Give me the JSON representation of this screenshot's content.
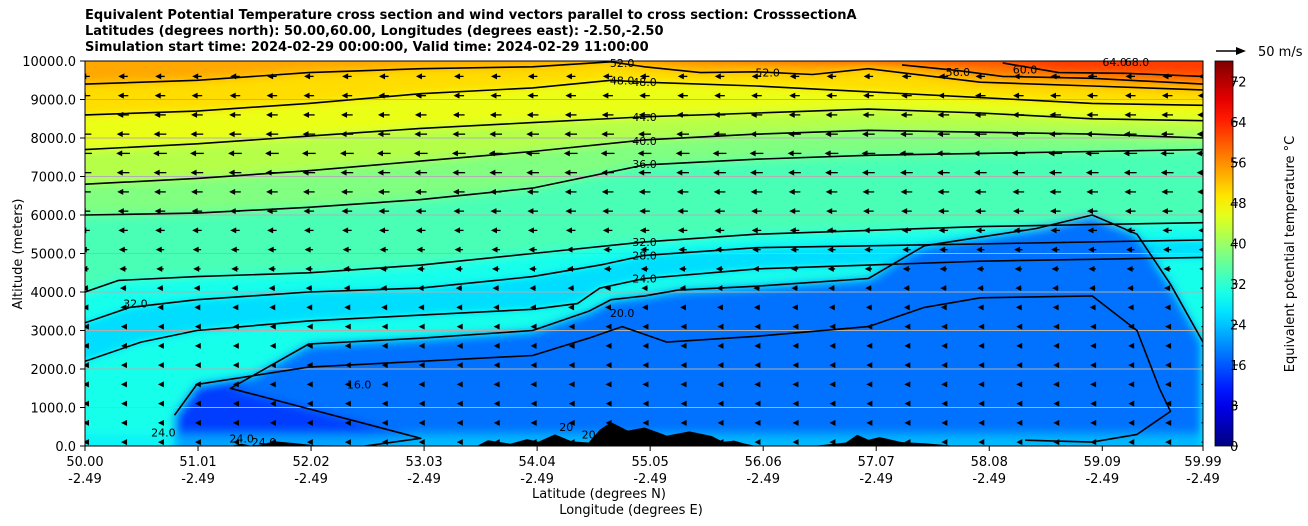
{
  "chart_data": {
    "type": "heatmap",
    "title_lines": [
      "Equivalent Potential Temperature cross section and wind vectors parallel to cross section: CrosssectionA",
      "Latitudes (degrees north): 50.00,60.00, Longitudes (degrees east): -2.50,-2.50",
      "Simulation start time: 2024-02-29 00:00:00, Valid time: 2024-02-29 11:00:00"
    ],
    "xlabel": "Latitude (degrees N)",
    "xlabel2": "Longitude (degrees E)",
    "ylabel": "Altitude (meters)",
    "x_ticks_lat": [
      "50.00",
      "51.01",
      "52.02",
      "53.03",
      "54.04",
      "55.05",
      "56.06",
      "57.07",
      "58.08",
      "59.09",
      "59.99"
    ],
    "x_ticks_lon": [
      "-2.49",
      "-2.49",
      "-2.49",
      "-2.49",
      "-2.49",
      "-2.49",
      "-2.49",
      "-2.49",
      "-2.49",
      "-2.49",
      "-2.49"
    ],
    "x_tick_values": [
      50.0,
      51.01,
      52.02,
      53.03,
      54.04,
      55.05,
      56.06,
      57.07,
      58.08,
      59.09,
      59.99
    ],
    "xlim": [
      50.0,
      59.99
    ],
    "y_ticks": [
      "0.0",
      "1000.0",
      "2000.0",
      "3000.0",
      "4000.0",
      "5000.0",
      "6000.0",
      "7000.0",
      "8000.0",
      "9000.0",
      "10000.0"
    ],
    "y_tick_values": [
      0,
      1000,
      2000,
      3000,
      4000,
      5000,
      6000,
      7000,
      8000,
      9000,
      10000
    ],
    "ylim": [
      0,
      10000
    ],
    "grid": "horizontal",
    "colorbar": {
      "label": "Equivalent potential temperature °C",
      "range": [
        0,
        76
      ],
      "ticks": [
        "0",
        "8",
        "16",
        "24",
        "32",
        "40",
        "48",
        "56",
        "64",
        "72"
      ],
      "tick_values": [
        0,
        8,
        16,
        24,
        32,
        40,
        48,
        56,
        64,
        72
      ],
      "colormap": "jet"
    },
    "quiver_key": {
      "label": "50 m/s",
      "speed": 50
    },
    "contour_levels": [
      16,
      20,
      24,
      28,
      32,
      36,
      40,
      44,
      48,
      52,
      56,
      60
    ],
    "contour_labels": [
      {
        "text": "52.0",
        "lat": 54.8,
        "alt": 9950
      },
      {
        "text": "48.0",
        "lat": 54.8,
        "alt": 9500
      },
      {
        "text": "48.0",
        "lat": 55.0,
        "alt": 9450
      },
      {
        "text": "52.0",
        "lat": 56.1,
        "alt": 9700
      },
      {
        "text": "56.0",
        "lat": 57.8,
        "alt": 9720
      },
      {
        "text": "60.0",
        "lat": 58.4,
        "alt": 9780
      },
      {
        "text": "64.0",
        "lat": 59.2,
        "alt": 9980
      },
      {
        "text": "68.0",
        "lat": 59.4,
        "alt": 9980
      },
      {
        "text": "44.0",
        "lat": 55.0,
        "alt": 8540
      },
      {
        "text": "40.0",
        "lat": 55.0,
        "alt": 7920
      },
      {
        "text": "36.0",
        "lat": 55.0,
        "alt": 7330
      },
      {
        "text": "32.0",
        "lat": 55.0,
        "alt": 5300
      },
      {
        "text": "28.0",
        "lat": 55.0,
        "alt": 4950
      },
      {
        "text": "24.0",
        "lat": 55.0,
        "alt": 4350
      },
      {
        "text": "20.0",
        "lat": 54.8,
        "alt": 3450
      },
      {
        "text": "32.0",
        "lat": 50.45,
        "alt": 3700
      },
      {
        "text": "16.0",
        "lat": 52.45,
        "alt": 1600
      },
      {
        "text": "24.0",
        "lat": 50.7,
        "alt": 350
      },
      {
        "text": "24.0",
        "lat": 51.4,
        "alt": 200
      },
      {
        "text": "24.0",
        "lat": 51.6,
        "alt": 100
      },
      {
        "text": "20",
        "lat": 54.3,
        "alt": 500
      },
      {
        "text": "20",
        "lat": 54.5,
        "alt": 300
      }
    ],
    "contour_lines": [
      {
        "level": 16,
        "points": [
          [
            50.8,
            800
          ],
          [
            51.0,
            1600
          ],
          [
            52.0,
            2050
          ],
          [
            53.0,
            2200
          ],
          [
            54.0,
            2350
          ],
          [
            54.5,
            2800
          ],
          [
            54.8,
            3100
          ],
          [
            55.2,
            2700
          ],
          [
            56.0,
            2850
          ],
          [
            57.0,
            3100
          ],
          [
            57.5,
            3600
          ],
          [
            58.0,
            3850
          ],
          [
            59.0,
            3900
          ],
          [
            59.4,
            3000
          ],
          [
            59.6,
            1500
          ],
          [
            59.7,
            900
          ],
          [
            59.4,
            300
          ],
          [
            59.0,
            100
          ],
          [
            58.4,
            150
          ]
        ]
      },
      {
        "level": 20,
        "points": [
          [
            52.5,
            0
          ],
          [
            53.0,
            200
          ],
          [
            51.3,
            1500
          ],
          [
            52.0,
            2650
          ],
          [
            53.0,
            2800
          ],
          [
            54.0,
            3000
          ],
          [
            54.5,
            3500
          ],
          [
            54.7,
            3800
          ],
          [
            55.0,
            3900
          ],
          [
            55.3,
            4050
          ],
          [
            56.0,
            4150
          ],
          [
            57.0,
            4350
          ],
          [
            57.5,
            5200
          ],
          [
            58.5,
            5650
          ],
          [
            59.0,
            6000
          ],
          [
            59.4,
            5500
          ],
          [
            59.7,
            4200
          ],
          [
            59.99,
            2700
          ]
        ]
      },
      {
        "level": 24,
        "points": [
          [
            50.0,
            2200
          ],
          [
            50.5,
            2700
          ],
          [
            51.0,
            3000
          ],
          [
            52.0,
            3250
          ],
          [
            53.0,
            3400
          ],
          [
            54.0,
            3550
          ],
          [
            54.4,
            3700
          ],
          [
            54.6,
            4100
          ],
          [
            55.0,
            4350
          ],
          [
            56.0,
            4600
          ],
          [
            57.0,
            4700
          ],
          [
            58.0,
            4800
          ],
          [
            59.0,
            4850
          ],
          [
            59.99,
            4900
          ]
        ]
      },
      {
        "level": 28,
        "points": [
          [
            50.0,
            3200
          ],
          [
            50.4,
            3600
          ],
          [
            51.0,
            3800
          ],
          [
            52.0,
            4000
          ],
          [
            53.0,
            4100
          ],
          [
            54.0,
            4400
          ],
          [
            54.6,
            4700
          ],
          [
            55.0,
            4950
          ],
          [
            56.0,
            5150
          ],
          [
            57.0,
            5200
          ],
          [
            58.0,
            5250
          ],
          [
            59.0,
            5300
          ],
          [
            59.99,
            5350
          ]
        ]
      },
      {
        "level": 32,
        "points": [
          [
            50.0,
            4000
          ],
          [
            50.3,
            4300
          ],
          [
            51.0,
            4400
          ],
          [
            52.0,
            4500
          ],
          [
            53.0,
            4700
          ],
          [
            54.0,
            5000
          ],
          [
            55.0,
            5300
          ],
          [
            56.0,
            5500
          ],
          [
            57.0,
            5600
          ],
          [
            58.0,
            5700
          ],
          [
            59.0,
            5750
          ],
          [
            59.99,
            5800
          ]
        ]
      },
      {
        "level": 36,
        "points": [
          [
            50.0,
            6000
          ],
          [
            51.0,
            6050
          ],
          [
            52.0,
            6200
          ],
          [
            53.0,
            6400
          ],
          [
            54.0,
            6700
          ],
          [
            55.0,
            7300
          ],
          [
            56.0,
            7450
          ],
          [
            57.0,
            7550
          ],
          [
            58.0,
            7600
          ],
          [
            59.0,
            7650
          ],
          [
            59.99,
            7700
          ]
        ]
      },
      {
        "level": 40,
        "points": [
          [
            50.0,
            6800
          ],
          [
            51.0,
            6950
          ],
          [
            52.0,
            7150
          ],
          [
            53.0,
            7400
          ],
          [
            54.0,
            7650
          ],
          [
            55.0,
            7950
          ],
          [
            56.0,
            8100
          ],
          [
            57.0,
            8200
          ],
          [
            58.0,
            8150
          ],
          [
            59.0,
            8100
          ],
          [
            59.99,
            8000
          ]
        ]
      },
      {
        "level": 44,
        "points": [
          [
            50.0,
            7700
          ],
          [
            51.0,
            7850
          ],
          [
            52.0,
            8050
          ],
          [
            53.0,
            8250
          ],
          [
            54.0,
            8400
          ],
          [
            55.0,
            8550
          ],
          [
            56.0,
            8650
          ],
          [
            57.0,
            8750
          ],
          [
            58.0,
            8650
          ],
          [
            59.0,
            8500
          ],
          [
            59.99,
            8450
          ]
        ]
      },
      {
        "level": 48,
        "points": [
          [
            50.0,
            8600
          ],
          [
            51.0,
            8700
          ],
          [
            52.0,
            8900
          ],
          [
            53.0,
            9150
          ],
          [
            54.0,
            9300
          ],
          [
            54.7,
            9500
          ],
          [
            55.0,
            9450
          ],
          [
            56.0,
            9350
          ],
          [
            57.0,
            9200
          ],
          [
            58.0,
            9050
          ],
          [
            59.0,
            8900
          ],
          [
            59.99,
            8850
          ]
        ]
      },
      {
        "level": 52,
        "points": [
          [
            50.0,
            9400
          ],
          [
            51.0,
            9500
          ],
          [
            52.0,
            9700
          ],
          [
            53.0,
            9800
          ],
          [
            54.0,
            9850
          ],
          [
            54.7,
            9980
          ],
          [
            55.0,
            9850
          ],
          [
            55.5,
            9700
          ],
          [
            56.0,
            9720
          ],
          [
            56.5,
            9650
          ],
          [
            57.0,
            9800
          ],
          [
            58.0,
            9450
          ],
          [
            59.0,
            9350
          ],
          [
            59.99,
            9250
          ]
        ]
      },
      {
        "level": 56,
        "points": [
          [
            57.3,
            9900
          ],
          [
            57.8,
            9750
          ],
          [
            58.2,
            9600
          ],
          [
            59.0,
            9550
          ],
          [
            59.99,
            9400
          ]
        ]
      },
      {
        "level": 60,
        "points": [
          [
            58.2,
            9950
          ],
          [
            58.7,
            9700
          ],
          [
            59.3,
            9680
          ],
          [
            59.99,
            9600
          ]
        ]
      }
    ],
    "terrain": [
      [
        50.0,
        0
      ],
      [
        51.3,
        0
      ],
      [
        51.4,
        60
      ],
      [
        51.5,
        0
      ],
      [
        51.7,
        120
      ],
      [
        51.85,
        80
      ],
      [
        52.05,
        20
      ],
      [
        52.6,
        0
      ],
      [
        53.5,
        0
      ],
      [
        53.6,
        150
      ],
      [
        53.8,
        60
      ],
      [
        53.95,
        180
      ],
      [
        54.05,
        110
      ],
      [
        54.2,
        300
      ],
      [
        54.35,
        120
      ],
      [
        54.5,
        90
      ],
      [
        54.6,
        420
      ],
      [
        54.7,
        620
      ],
      [
        54.85,
        400
      ],
      [
        55.0,
        480
      ],
      [
        55.2,
        270
      ],
      [
        55.4,
        380
      ],
      [
        55.6,
        260
      ],
      [
        55.7,
        110
      ],
      [
        55.8,
        140
      ],
      [
        55.9,
        60
      ],
      [
        56.0,
        0
      ],
      [
        56.5,
        0
      ],
      [
        56.8,
        90
      ],
      [
        56.9,
        290
      ],
      [
        57.0,
        160
      ],
      [
        57.1,
        230
      ],
      [
        57.3,
        100
      ],
      [
        57.5,
        70
      ],
      [
        57.8,
        0
      ],
      [
        59.99,
        0
      ]
    ],
    "wind_rows": [
      9600,
      9100,
      8600,
      8100,
      7600,
      7100,
      6600,
      6100,
      5600,
      5100,
      4600,
      4100,
      3600,
      3100,
      2600,
      2100,
      1600,
      1100,
      600,
      100
    ],
    "wind_cols": [
      50.0,
      50.34,
      50.67,
      51.0,
      51.34,
      51.67,
      52.0,
      52.34,
      52.67,
      53.0,
      53.34,
      53.67,
      54.0,
      54.34,
      54.67,
      55.0,
      55.34,
      55.67,
      56.0,
      56.34,
      56.67,
      57.0,
      57.34,
      57.67,
      58.0,
      58.34,
      58.67,
      59.0,
      59.34,
      59.67,
      59.99
    ],
    "wind_speed_by_row": [
      -9,
      -10,
      -11,
      -12,
      -13,
      -12,
      -11,
      -10,
      -9,
      -8,
      -7,
      -6,
      -5,
      -4,
      -4,
      -4,
      -4,
      -3,
      -3,
      -2
    ]
  }
}
